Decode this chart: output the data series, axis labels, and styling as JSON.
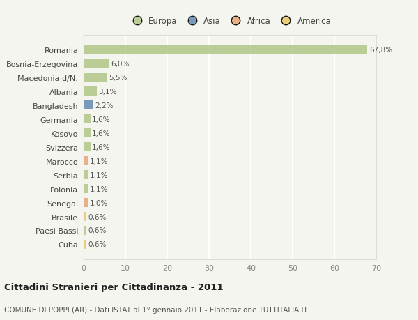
{
  "categories": [
    "Romania",
    "Bosnia-Erzegovina",
    "Macedonia d/N.",
    "Albania",
    "Bangladesh",
    "Germania",
    "Kosovo",
    "Svizzera",
    "Marocco",
    "Serbia",
    "Polonia",
    "Senegal",
    "Brasile",
    "Paesi Bassi",
    "Cuba"
  ],
  "values": [
    67.8,
    6.0,
    5.5,
    3.1,
    2.2,
    1.6,
    1.6,
    1.6,
    1.1,
    1.1,
    1.1,
    1.0,
    0.6,
    0.6,
    0.6
  ],
  "labels": [
    "67,8%",
    "6,0%",
    "5,5%",
    "3,1%",
    "2,2%",
    "1,6%",
    "1,6%",
    "1,6%",
    "1,1%",
    "1,1%",
    "1,1%",
    "1,0%",
    "0,6%",
    "0,6%",
    "0,6%"
  ],
  "colors": [
    "#b5c98e",
    "#b5c98e",
    "#b5c98e",
    "#b5c98e",
    "#6b8fb5",
    "#b5c98e",
    "#b5c98e",
    "#b5c98e",
    "#e8a87c",
    "#b5c98e",
    "#b5c98e",
    "#e8a87c",
    "#e8c96e",
    "#b5c98e",
    "#e8c96e"
  ],
  "legend_labels": [
    "Europa",
    "Asia",
    "Africa",
    "America"
  ],
  "legend_colors": [
    "#b5c98e",
    "#6b8fb5",
    "#e8a87c",
    "#e8c96e"
  ],
  "title": "Cittadini Stranieri per Cittadinanza - 2011",
  "subtitle": "COMUNE DI POPPI (AR) - Dati ISTAT al 1° gennaio 2011 - Elaborazione TUTTITALIA.IT",
  "xlim": [
    0,
    70
  ],
  "xticks": [
    0,
    10,
    20,
    30,
    40,
    50,
    60,
    70
  ],
  "background_color": "#f5f5f0",
  "grid_color": "#ffffff",
  "bar_height": 0.65
}
